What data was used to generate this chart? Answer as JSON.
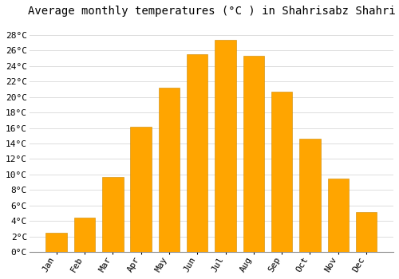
{
  "title": "Average monthly temperatures (°C ) in Shahrisabz Shahri",
  "months": [
    "Jan",
    "Feb",
    "Mar",
    "Apr",
    "May",
    "Jun",
    "Jul",
    "Aug",
    "Sep",
    "Oct",
    "Nov",
    "Dec"
  ],
  "values": [
    2.5,
    4.5,
    9.7,
    16.2,
    21.2,
    25.5,
    27.3,
    25.3,
    20.7,
    14.6,
    9.5,
    5.2
  ],
  "bar_color": "#FFA500",
  "bar_color2": "#FFB733",
  "bar_edge_color": "#CC8800",
  "background_color": "#FFFFFF",
  "plot_bg_color": "#FFFFFF",
  "grid_color": "#DDDDDD",
  "ylim": [
    0,
    29.5
  ],
  "yticks": [
    0,
    2,
    4,
    6,
    8,
    10,
    12,
    14,
    16,
    18,
    20,
    22,
    24,
    26,
    28
  ],
  "ytick_labels": [
    "0°C",
    "2°C",
    "4°C",
    "6°C",
    "8°C",
    "10°C",
    "12°C",
    "14°C",
    "16°C",
    "18°C",
    "20°C",
    "22°C",
    "24°C",
    "26°C",
    "28°C"
  ],
  "title_fontsize": 10,
  "tick_fontsize": 8,
  "font_family": "monospace",
  "bar_width": 0.75
}
